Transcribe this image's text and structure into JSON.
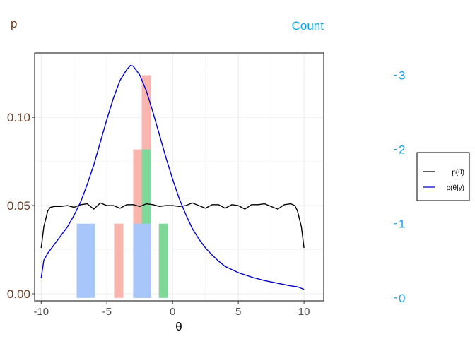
{
  "chart_data": {
    "type": "line",
    "xlabel": "θ",
    "ylabel": "p",
    "y2label": "Count",
    "xlim": [
      -10.5,
      11.5
    ],
    "ylim": [
      -0.004,
      0.1365
    ],
    "y2lim": [
      -0.04,
      3.3
    ],
    "xticks": [
      -10,
      -5,
      0,
      5,
      10
    ],
    "xtick_labels": [
      "-10",
      "-5",
      "0",
      "5",
      "10"
    ],
    "yticks": [
      0.0,
      0.05,
      0.1
    ],
    "ytick_labels": [
      "0.00",
      "0.05",
      "0.10"
    ],
    "y2ticks": [
      0,
      1,
      2,
      3
    ],
    "y2tick_labels": [
      "0",
      "1",
      "2",
      "3"
    ],
    "grid": true,
    "legend": {
      "placement": "right",
      "entries": [
        {
          "label": "p(θ)",
          "color": "#000000"
        },
        {
          "label": "p(θ|y)",
          "color": "#0000CD"
        }
      ]
    },
    "series": [
      {
        "name": "p(θ)",
        "color": "#000000",
        "x": [
          -10.0,
          -9.8,
          -9.5,
          -9.3,
          -9.0,
          -8.5,
          -8.0,
          -7.5,
          -7.0,
          -6.5,
          -6.0,
          -5.5,
          -5.0,
          -4.5,
          -4.0,
          -3.5,
          -3.0,
          -2.5,
          -2.0,
          -1.5,
          -1.0,
          -0.5,
          0.0,
          0.5,
          1.0,
          1.5,
          2.0,
          2.5,
          3.0,
          3.5,
          4.0,
          4.5,
          5.0,
          5.5,
          6.0,
          6.5,
          7.0,
          7.5,
          8.0,
          8.5,
          9.0,
          9.3,
          9.5,
          9.8,
          10.0
        ],
        "y": [
          0.026,
          0.038,
          0.047,
          0.049,
          0.0495,
          0.0495,
          0.05,
          0.049,
          0.0505,
          0.051,
          0.048,
          0.0515,
          0.05,
          0.05,
          0.0485,
          0.0505,
          0.0505,
          0.0495,
          0.051,
          0.0505,
          0.0495,
          0.05,
          0.05,
          0.0495,
          0.05,
          0.0515,
          0.05,
          0.0485,
          0.0505,
          0.0505,
          0.0485,
          0.0505,
          0.05,
          0.048,
          0.0505,
          0.0505,
          0.051,
          0.0495,
          0.048,
          0.0505,
          0.051,
          0.05,
          0.047,
          0.038,
          0.026
        ]
      },
      {
        "name": "p(θ|y)",
        "color": "#0000CD",
        "x": [
          -10.0,
          -9.8,
          -9.5,
          -9.0,
          -8.5,
          -8.0,
          -7.5,
          -7.0,
          -6.5,
          -6.0,
          -5.5,
          -5.0,
          -4.5,
          -4.0,
          -3.5,
          -3.2,
          -3.0,
          -2.5,
          -2.0,
          -1.5,
          -1.0,
          -0.5,
          0.0,
          0.5,
          1.0,
          1.5,
          2.0,
          2.5,
          3.0,
          3.5,
          4.0,
          5.0,
          6.0,
          7.0,
          8.0,
          9.0,
          9.5,
          10.0
        ],
        "y": [
          0.009,
          0.019,
          0.023,
          0.028,
          0.033,
          0.038,
          0.0445,
          0.052,
          0.062,
          0.073,
          0.086,
          0.099,
          0.111,
          0.121,
          0.127,
          0.1295,
          0.129,
          0.124,
          0.115,
          0.103,
          0.09,
          0.077,
          0.065,
          0.054,
          0.045,
          0.037,
          0.031,
          0.026,
          0.022,
          0.0185,
          0.0155,
          0.012,
          0.0095,
          0.0075,
          0.006,
          0.0045,
          0.004,
          0.0025
        ]
      }
    ],
    "bars": {
      "axis": "secondary",
      "width": 0.7,
      "items": [
        {
          "x": -6.95,
          "count": 1,
          "color": "#A9C6FA"
        },
        {
          "x": -6.25,
          "count": 1,
          "color": "#A9C6FA"
        },
        {
          "x": -4.1,
          "count": 1,
          "color": "#F8B4AD"
        },
        {
          "x": -2.65,
          "count": 2,
          "color": "#F8B4AD"
        },
        {
          "x": -2.65,
          "count": 1,
          "color": "#A9C6FA"
        },
        {
          "x": -2.0,
          "count": 3,
          "color": "#F8B4AD"
        },
        {
          "x": -2.0,
          "count": 2,
          "color": "#7FD89A"
        },
        {
          "x": -2.0,
          "count": 1,
          "color": "#A9C6FA"
        },
        {
          "x": -0.7,
          "count": 1,
          "color": "#7FD89A"
        }
      ]
    }
  }
}
